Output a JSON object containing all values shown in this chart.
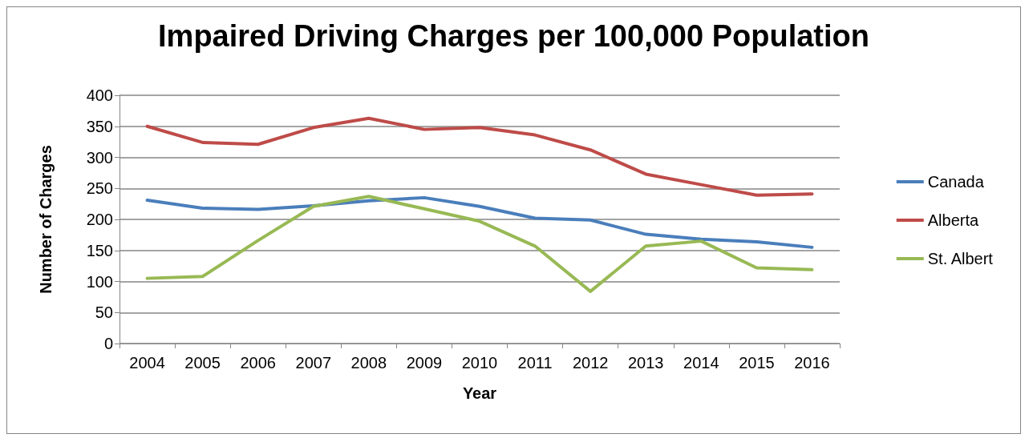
{
  "chart_data": {
    "type": "line",
    "title": "Impaired Driving Charges per 100,000 Population",
    "xlabel": "Year",
    "ylabel": "Number of Charges",
    "categories": [
      "2004",
      "2005",
      "2006",
      "2007",
      "2008",
      "2009",
      "2010",
      "2011",
      "2012",
      "2013",
      "2014",
      "2015",
      "2016"
    ],
    "series": [
      {
        "name": "Canada",
        "color": "#4a7ebb",
        "values": [
          231,
          218,
          216,
          222,
          230,
          235,
          221,
          202,
          199,
          176,
          168,
          164,
          155
        ]
      },
      {
        "name": "Alberta",
        "color": "#be4b48",
        "values": [
          350,
          324,
          321,
          348,
          363,
          345,
          348,
          336,
          312,
          273,
          256,
          239,
          241
        ]
      },
      {
        "name": "St. Albert",
        "color": "#98b954",
        "values": [
          105,
          108,
          166,
          221,
          237,
          217,
          197,
          157,
          84,
          157,
          165,
          122,
          119
        ]
      }
    ],
    "ylim": [
      0,
      400
    ],
    "yticks": [
      0,
      50,
      100,
      150,
      200,
      250,
      300,
      350,
      400
    ],
    "grid": "y",
    "legend": "right",
    "marker": "none",
    "line_style": "solid"
  }
}
